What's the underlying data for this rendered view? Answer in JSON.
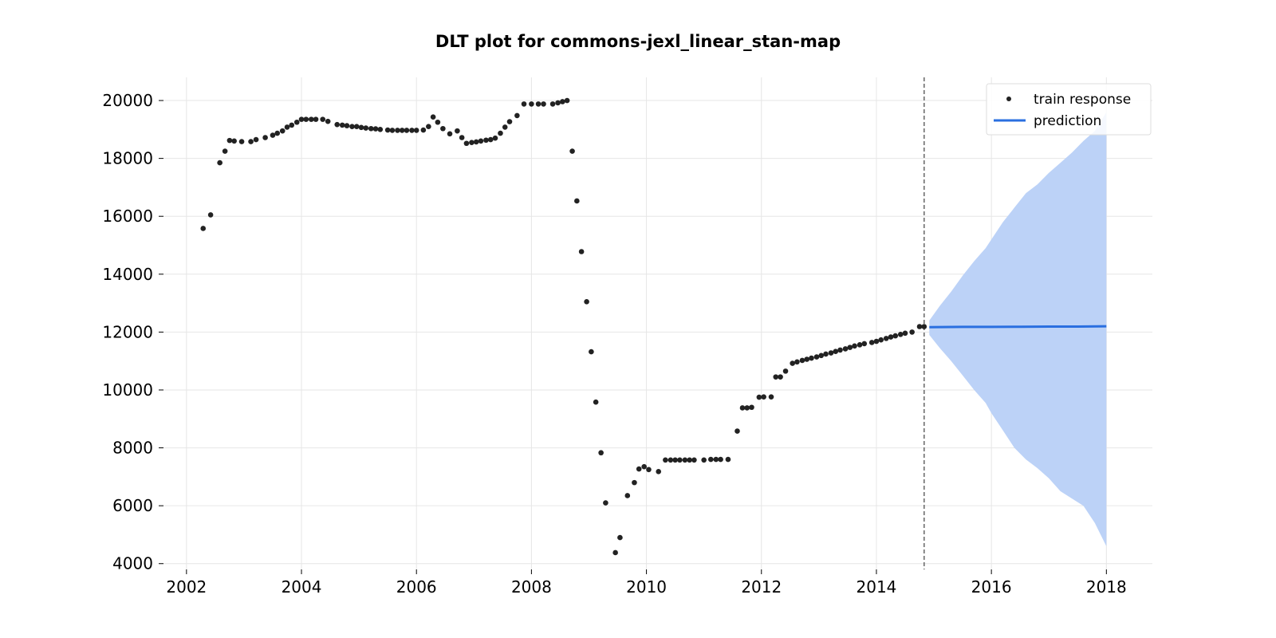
{
  "chart_data": {
    "type": "scatter",
    "title": "DLT plot for commons-jexl_linear_stan-map",
    "xlabel": "",
    "ylabel": "",
    "xlim": [
      2001.6,
      2018.8
    ],
    "ylim": [
      3800,
      20800
    ],
    "x_ticks": [
      "2002",
      "2004",
      "2006",
      "2008",
      "2010",
      "2012",
      "2014",
      "2016",
      "2018"
    ],
    "y_ticks": [
      "4000",
      "6000",
      "8000",
      "10000",
      "12000",
      "14000",
      "16000",
      "18000",
      "20000"
    ],
    "grid": true,
    "legend_position": "top-right",
    "train_cutoff": 2014.83,
    "colors": {
      "train_points": "#222222",
      "prediction_line": "#2a6fe0",
      "interval_fill": "#bcd2f7",
      "cutoff_line": "#666666",
      "grid": "#e6e6e6"
    },
    "series": [
      {
        "name": "train response",
        "kind": "scatter",
        "points": [
          [
            2002.29,
            15580
          ],
          [
            2002.42,
            16050
          ],
          [
            2002.58,
            17850
          ],
          [
            2002.67,
            18250
          ],
          [
            2002.75,
            18620
          ],
          [
            2002.83,
            18600
          ],
          [
            2002.96,
            18580
          ],
          [
            2003.12,
            18580
          ],
          [
            2003.21,
            18650
          ],
          [
            2003.37,
            18720
          ],
          [
            2003.5,
            18800
          ],
          [
            2003.58,
            18870
          ],
          [
            2003.67,
            18950
          ],
          [
            2003.75,
            19080
          ],
          [
            2003.83,
            19150
          ],
          [
            2003.92,
            19250
          ],
          [
            2004.0,
            19350
          ],
          [
            2004.08,
            19350
          ],
          [
            2004.17,
            19350
          ],
          [
            2004.25,
            19350
          ],
          [
            2004.37,
            19350
          ],
          [
            2004.46,
            19280
          ],
          [
            2004.62,
            19170
          ],
          [
            2004.71,
            19150
          ],
          [
            2004.79,
            19130
          ],
          [
            2004.88,
            19100
          ],
          [
            2004.96,
            19100
          ],
          [
            2005.04,
            19070
          ],
          [
            2005.12,
            19050
          ],
          [
            2005.21,
            19030
          ],
          [
            2005.29,
            19020
          ],
          [
            2005.37,
            19000
          ],
          [
            2005.5,
            18980
          ],
          [
            2005.58,
            18970
          ],
          [
            2005.67,
            18970
          ],
          [
            2005.75,
            18970
          ],
          [
            2005.83,
            18970
          ],
          [
            2005.92,
            18970
          ],
          [
            2006.0,
            18970
          ],
          [
            2006.12,
            18980
          ],
          [
            2006.21,
            19100
          ],
          [
            2006.29,
            19430
          ],
          [
            2006.37,
            19250
          ],
          [
            2006.46,
            19030
          ],
          [
            2006.58,
            18850
          ],
          [
            2006.71,
            18950
          ],
          [
            2006.79,
            18720
          ],
          [
            2006.87,
            18520
          ],
          [
            2006.96,
            18550
          ],
          [
            2007.04,
            18570
          ],
          [
            2007.12,
            18600
          ],
          [
            2007.21,
            18630
          ],
          [
            2007.29,
            18650
          ],
          [
            2007.37,
            18700
          ],
          [
            2007.46,
            18870
          ],
          [
            2007.54,
            19080
          ],
          [
            2007.62,
            19270
          ],
          [
            2007.75,
            19480
          ],
          [
            2007.87,
            19880
          ],
          [
            2008.0,
            19880
          ],
          [
            2008.12,
            19880
          ],
          [
            2008.21,
            19880
          ],
          [
            2008.37,
            19880
          ],
          [
            2008.46,
            19920
          ],
          [
            2008.54,
            19960
          ],
          [
            2008.62,
            20000
          ],
          [
            2008.71,
            18250
          ],
          [
            2008.79,
            16530
          ],
          [
            2008.87,
            14780
          ],
          [
            2008.96,
            13050
          ],
          [
            2009.04,
            11320
          ],
          [
            2009.12,
            9580
          ],
          [
            2009.21,
            7830
          ],
          [
            2009.29,
            6100
          ],
          [
            2009.46,
            4380
          ],
          [
            2009.54,
            4900
          ],
          [
            2009.67,
            6350
          ],
          [
            2009.79,
            6800
          ],
          [
            2009.87,
            7270
          ],
          [
            2009.96,
            7350
          ],
          [
            2010.04,
            7250
          ],
          [
            2010.21,
            7180
          ],
          [
            2010.33,
            7580
          ],
          [
            2010.42,
            7580
          ],
          [
            2010.5,
            7580
          ],
          [
            2010.58,
            7580
          ],
          [
            2010.67,
            7580
          ],
          [
            2010.75,
            7580
          ],
          [
            2010.83,
            7580
          ],
          [
            2011.0,
            7580
          ],
          [
            2011.12,
            7600
          ],
          [
            2011.21,
            7600
          ],
          [
            2011.29,
            7600
          ],
          [
            2011.42,
            7600
          ],
          [
            2011.58,
            8580
          ],
          [
            2011.67,
            9380
          ],
          [
            2011.75,
            9380
          ],
          [
            2011.83,
            9400
          ],
          [
            2011.96,
            9750
          ],
          [
            2012.04,
            9760
          ],
          [
            2012.17,
            9760
          ],
          [
            2012.25,
            10450
          ],
          [
            2012.33,
            10450
          ],
          [
            2012.42,
            10650
          ],
          [
            2012.54,
            10920
          ],
          [
            2012.62,
            10970
          ],
          [
            2012.71,
            11020
          ],
          [
            2012.79,
            11060
          ],
          [
            2012.87,
            11100
          ],
          [
            2012.96,
            11140
          ],
          [
            2013.04,
            11190
          ],
          [
            2013.12,
            11240
          ],
          [
            2013.21,
            11280
          ],
          [
            2013.29,
            11330
          ],
          [
            2013.37,
            11380
          ],
          [
            2013.46,
            11420
          ],
          [
            2013.54,
            11470
          ],
          [
            2013.62,
            11520
          ],
          [
            2013.71,
            11560
          ],
          [
            2013.79,
            11600
          ],
          [
            2013.92,
            11640
          ],
          [
            2014.0,
            11680
          ],
          [
            2014.08,
            11730
          ],
          [
            2014.17,
            11780
          ],
          [
            2014.25,
            11830
          ],
          [
            2014.33,
            11870
          ],
          [
            2014.42,
            11920
          ],
          [
            2014.5,
            11960
          ],
          [
            2014.62,
            12000
          ],
          [
            2014.75,
            12190
          ],
          [
            2014.83,
            12190
          ]
        ]
      },
      {
        "name": "prediction",
        "kind": "line",
        "points": [
          [
            2014.92,
            12170
          ],
          [
            2015.5,
            12180
          ],
          [
            2016.0,
            12180
          ],
          [
            2016.5,
            12185
          ],
          [
            2017.0,
            12190
          ],
          [
            2017.5,
            12190
          ],
          [
            2018.0,
            12200
          ]
        ],
        "interval": [
          [
            2014.92,
            12400,
            11900
          ],
          [
            2015.1,
            12900,
            11450
          ],
          [
            2015.3,
            13400,
            11000
          ],
          [
            2015.5,
            13950,
            10500
          ],
          [
            2015.7,
            14450,
            10000
          ],
          [
            2015.9,
            14900,
            9550
          ],
          [
            2016.0,
            15200,
            9200
          ],
          [
            2016.2,
            15800,
            8600
          ],
          [
            2016.4,
            16300,
            8000
          ],
          [
            2016.6,
            16800,
            7600
          ],
          [
            2016.8,
            17100,
            7300
          ],
          [
            2017.0,
            17500,
            6950
          ],
          [
            2017.2,
            17850,
            6500
          ],
          [
            2017.4,
            18200,
            6250
          ],
          [
            2017.6,
            18600,
            6000
          ],
          [
            2017.8,
            18950,
            5400
          ],
          [
            2018.0,
            19600,
            4600
          ]
        ]
      }
    ]
  }
}
